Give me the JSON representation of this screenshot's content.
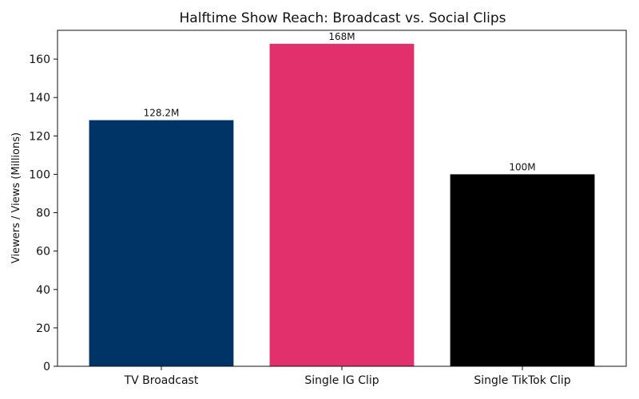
{
  "chart_data": {
    "type": "bar",
    "title": "Halftime Show Reach: Broadcast vs. Social Clips",
    "xlabel": "",
    "ylabel": "Viewers / Views (Millions)",
    "ylim": [
      0,
      175
    ],
    "yticks": [
      0,
      20,
      40,
      60,
      80,
      100,
      120,
      140,
      160
    ],
    "categories": [
      "TV Broadcast",
      "Single IG Clip",
      "Single TikTok Clip"
    ],
    "values": [
      128.2,
      168,
      100
    ],
    "data_labels": [
      "128.2M",
      "168M",
      "100M"
    ],
    "colors": [
      "#003366",
      "#E1306C",
      "#000000"
    ],
    "grid": false,
    "legend": "none"
  }
}
